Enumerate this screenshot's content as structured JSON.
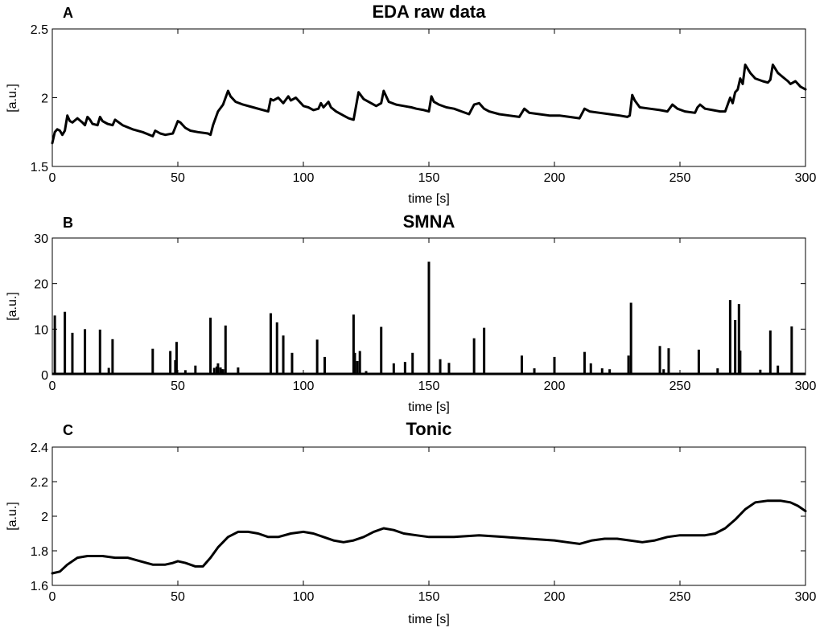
{
  "chart_data": [
    {
      "type": "line",
      "letter": "A",
      "title": "EDA raw data",
      "xlabel": "time [s]",
      "ylabel": "[a.u.]",
      "xlim": [
        0,
        300
      ],
      "ylim": [
        1.5,
        2.5
      ],
      "xticks": [
        0,
        50,
        100,
        150,
        200,
        250,
        300
      ],
      "yticks": [
        1.5,
        2,
        2.5
      ],
      "ytick_labels": [
        "1.5",
        "2",
        "2.5"
      ],
      "grid": false,
      "series": [
        {
          "x": [
            0,
            1,
            2,
            3,
            4,
            5,
            6,
            7,
            8,
            10,
            12,
            13,
            14,
            15,
            16,
            18,
            19,
            20,
            22,
            24,
            25,
            28,
            32,
            36,
            40,
            41,
            43,
            45,
            48,
            50,
            51,
            53,
            55,
            58,
            62,
            63,
            64,
            66,
            68,
            70,
            71,
            73,
            76,
            80,
            84,
            86,
            87,
            88,
            90,
            92,
            94,
            95,
            97,
            99,
            100,
            102,
            104,
            106,
            107,
            108,
            110,
            111,
            113,
            116,
            118,
            120,
            122,
            124,
            127,
            129,
            131,
            132,
            134,
            137,
            140,
            143,
            145,
            148,
            150,
            151,
            152,
            154,
            157,
            160,
            163,
            166,
            168,
            170,
            172,
            174,
            178,
            182,
            186,
            188,
            190,
            194,
            198,
            202,
            206,
            210,
            212,
            214,
            218,
            222,
            226,
            229,
            230,
            231,
            232,
            234,
            238,
            242,
            245,
            247,
            249,
            252,
            256,
            257,
            258,
            260,
            263,
            266,
            268,
            269,
            270,
            271,
            272,
            273,
            274,
            275,
            276,
            278,
            280,
            283,
            285,
            286,
            287,
            289,
            291,
            293,
            294,
            296,
            298,
            300
          ],
          "y": [
            1.67,
            1.75,
            1.77,
            1.76,
            1.73,
            1.76,
            1.87,
            1.83,
            1.82,
            1.85,
            1.82,
            1.8,
            1.86,
            1.84,
            1.81,
            1.8,
            1.86,
            1.83,
            1.81,
            1.8,
            1.84,
            1.8,
            1.77,
            1.75,
            1.72,
            1.76,
            1.74,
            1.73,
            1.74,
            1.83,
            1.82,
            1.78,
            1.76,
            1.75,
            1.74,
            1.73,
            1.8,
            1.9,
            1.95,
            2.05,
            2.01,
            1.97,
            1.95,
            1.93,
            1.91,
            1.9,
            1.99,
            1.98,
            2.0,
            1.96,
            2.01,
            1.98,
            2.0,
            1.96,
            1.94,
            1.93,
            1.91,
            1.92,
            1.96,
            1.93,
            1.97,
            1.93,
            1.9,
            1.87,
            1.85,
            1.84,
            2.04,
            1.99,
            1.96,
            1.94,
            1.96,
            2.05,
            1.97,
            1.95,
            1.94,
            1.93,
            1.92,
            1.91,
            1.9,
            2.01,
            1.97,
            1.95,
            1.93,
            1.92,
            1.9,
            1.88,
            1.95,
            1.96,
            1.92,
            1.9,
            1.88,
            1.87,
            1.86,
            1.92,
            1.89,
            1.88,
            1.87,
            1.87,
            1.86,
            1.85,
            1.92,
            1.9,
            1.89,
            1.88,
            1.87,
            1.86,
            1.87,
            2.02,
            1.98,
            1.93,
            1.92,
            1.91,
            1.9,
            1.95,
            1.92,
            1.9,
            1.89,
            1.93,
            1.95,
            1.92,
            1.91,
            1.9,
            1.9,
            1.95,
            2.0,
            1.96,
            2.04,
            2.06,
            2.14,
            2.1,
            2.24,
            2.18,
            2.14,
            2.12,
            2.11,
            2.13,
            2.24,
            2.18,
            2.15,
            2.12,
            2.1,
            2.12,
            2.08,
            2.06
          ]
        }
      ]
    },
    {
      "type": "bar",
      "letter": "B",
      "title": "SMNA",
      "xlabel": "time [s]",
      "ylabel": "[a.u.]",
      "xlim": [
        0,
        300
      ],
      "ylim": [
        0,
        30
      ],
      "xticks": [
        0,
        50,
        100,
        150,
        200,
        250,
        300
      ],
      "yticks": [
        0,
        10,
        20,
        30
      ],
      "ytick_labels": [
        "0",
        "10",
        "20",
        "30"
      ],
      "grid": false,
      "spikes_x": [
        1,
        5,
        8,
        13,
        19,
        22.5,
        24,
        40,
        47,
        49,
        49.5,
        53,
        57,
        63,
        64.5,
        65.5,
        66,
        67,
        67.5,
        68,
        69,
        74,
        87,
        89.5,
        92,
        95.5,
        105.5,
        108.5,
        120,
        120.5,
        121.5,
        122.5,
        125,
        131,
        136,
        140.5,
        143.5,
        150,
        154.5,
        158,
        168,
        172,
        187,
        192,
        200,
        212,
        214.5,
        219,
        222,
        229.5,
        230.5,
        242,
        243.5,
        245.5,
        257.5,
        265,
        270,
        272,
        273.5,
        274,
        282,
        286,
        289,
        294.5
      ],
      "spikes_y": [
        13,
        13.8,
        9.2,
        10,
        9.9,
        1.5,
        7.8,
        5.7,
        5.2,
        3.2,
        7.2,
        1,
        2,
        12.5,
        1.5,
        1.8,
        2.5,
        1.6,
        1.2,
        1.2,
        10.8,
        1.6,
        13.5,
        11.5,
        8.6,
        4.8,
        7.7,
        3.9,
        13.2,
        4.8,
        3,
        5.2,
        0.8,
        10.5,
        2.5,
        2.8,
        4.8,
        24.8,
        3.4,
        2.6,
        8,
        10.3,
        4.2,
        1.4,
        3.9,
        5,
        2.5,
        1.4,
        1.2,
        4.2,
        15.8,
        6.3,
        1.2,
        5.8,
        5.5,
        1.4,
        16.4,
        12,
        15.5,
        5.3,
        1.1,
        9.7,
        2,
        10.6
      ]
    },
    {
      "type": "line",
      "letter": "C",
      "title": "Tonic",
      "xlabel": "time [s]",
      "ylabel": "[a.u.]",
      "xlim": [
        0,
        300
      ],
      "ylim": [
        1.6,
        2.4
      ],
      "xticks": [
        0,
        50,
        100,
        150,
        200,
        250,
        300
      ],
      "yticks": [
        1.6,
        1.8,
        2,
        2.2,
        2.4
      ],
      "ytick_labels": [
        "1.6",
        "1.8",
        "2",
        "2.2",
        "2.4"
      ],
      "grid": false,
      "series": [
        {
          "x": [
            0,
            3,
            6,
            10,
            14,
            20,
            25,
            30,
            35,
            40,
            45,
            48,
            50,
            53,
            57,
            60,
            63,
            66,
            70,
            74,
            78,
            82,
            86,
            90,
            95,
            100,
            104,
            108,
            112,
            116,
            120,
            124,
            128,
            132,
            136,
            140,
            145,
            150,
            160,
            170,
            180,
            190,
            200,
            205,
            210,
            215,
            220,
            225,
            230,
            235,
            240,
            245,
            250,
            255,
            260,
            264,
            268,
            272,
            276,
            280,
            285,
            290,
            294,
            297,
            300
          ],
          "y": [
            1.67,
            1.68,
            1.72,
            1.76,
            1.77,
            1.77,
            1.76,
            1.76,
            1.74,
            1.72,
            1.72,
            1.73,
            1.74,
            1.73,
            1.71,
            1.71,
            1.76,
            1.82,
            1.88,
            1.91,
            1.91,
            1.9,
            1.88,
            1.88,
            1.9,
            1.91,
            1.9,
            1.88,
            1.86,
            1.85,
            1.86,
            1.88,
            1.91,
            1.93,
            1.92,
            1.9,
            1.89,
            1.88,
            1.88,
            1.89,
            1.88,
            1.87,
            1.86,
            1.85,
            1.84,
            1.86,
            1.87,
            1.87,
            1.86,
            1.85,
            1.86,
            1.88,
            1.89,
            1.89,
            1.89,
            1.9,
            1.93,
            1.98,
            2.04,
            2.08,
            2.09,
            2.09,
            2.08,
            2.06,
            2.03
          ]
        }
      ]
    }
  ]
}
